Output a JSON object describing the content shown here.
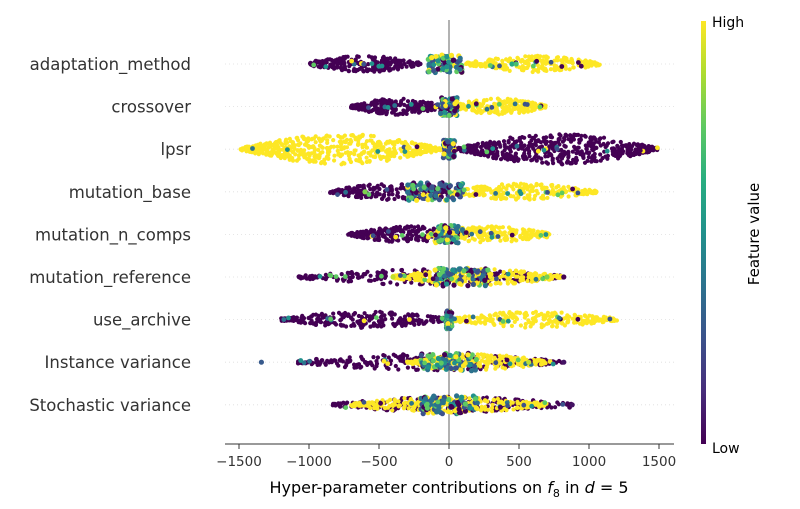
{
  "chart_data": {
    "type": "scatter",
    "subtype": "beeswarm",
    "xlabel_prefix": "Hyper-parameter contributions on ",
    "xlabel_f": "f",
    "xlabel_sub": "8",
    "xlabel_mid": " in ",
    "xlabel_d": "d",
    "xlabel_suffix": " = 5",
    "xlim": [
      -1600,
      1600
    ],
    "xticks": [
      -1500,
      -1000,
      -500,
      0,
      500,
      1000,
      1500
    ],
    "xtick_labels": [
      "−1500",
      "−1000",
      "−500",
      "0",
      "500",
      "1000",
      "1500"
    ],
    "colorbar": {
      "title": "Feature value",
      "high_label": "High",
      "low_label": "Low",
      "colormap": "viridis"
    },
    "features": [
      {
        "name": "adaptation_method",
        "low_range": [
          -1000,
          -200
        ],
        "high_range": [
          120,
          1080
        ],
        "mid_range": [
          -150,
          100
        ],
        "outliers": [
          [
            450,
            0.6
          ],
          [
            480,
            0.7
          ]
        ]
      },
      {
        "name": "crossover",
        "low_range": [
          -700,
          -40
        ],
        "high_range": [
          20,
          690
        ],
        "mid_range": [
          -60,
          60
        ],
        "outliers": []
      },
      {
        "name": "lpsr",
        "low_range": [
          50,
          1490
        ],
        "high_range": [
          -1490,
          -60
        ],
        "mid_range": [
          -40,
          40
        ],
        "outliers": []
      },
      {
        "name": "mutation_base",
        "low_range": [
          -850,
          0
        ],
        "high_range": [
          0,
          1050
        ],
        "mid_range": [
          -300,
          100
        ],
        "outliers": [
          [
            1050,
            1.0
          ],
          [
            -600,
            0.8
          ]
        ]
      },
      {
        "name": "mutation_n_comps",
        "low_range": [
          -720,
          150
        ],
        "high_range": [
          -150,
          720
        ],
        "mid_range": [
          -100,
          100
        ],
        "outliers": []
      },
      {
        "name": "mutation_reference",
        "low_range": [
          -1080,
          820
        ],
        "high_range": [
          -400,
          800
        ],
        "mid_range": [
          -100,
          300
        ],
        "outliers": [
          [
            -400,
            0.9
          ],
          [
            700,
            0.8
          ],
          [
            820,
            0.0
          ]
        ]
      },
      {
        "name": "use_archive",
        "low_range": [
          -1200,
          -10
        ],
        "high_range": [
          10,
          1200
        ],
        "mid_range": [
          -20,
          20
        ],
        "outliers": []
      },
      {
        "name": "Instance variance",
        "low_range": [
          -1080,
          820
        ],
        "high_range": [
          -300,
          700
        ],
        "mid_range": [
          -200,
          200
        ],
        "outliers": [
          [
            -1340,
            0.28
          ],
          [
            570,
            0.9
          ],
          [
            820,
            0.05
          ]
        ]
      },
      {
        "name": "Stochastic variance",
        "low_range": [
          -830,
          880
        ],
        "high_range": [
          -700,
          700
        ],
        "mid_range": [
          -200,
          200
        ],
        "outliers": [
          [
            880,
            0.05
          ]
        ]
      }
    ]
  }
}
